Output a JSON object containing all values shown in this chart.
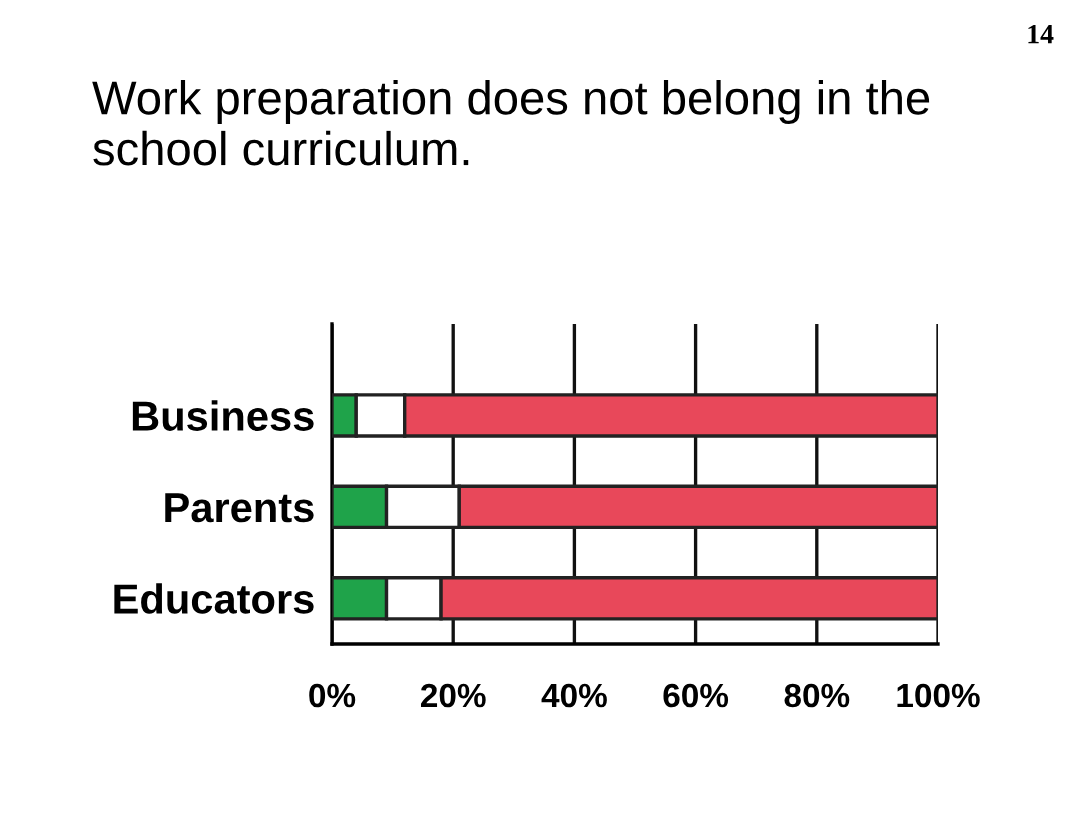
{
  "chart_data": {
    "type": "bar",
    "orientation": "horizontal",
    "stacked": true,
    "title": "Work preparation does not belong in the school curriculum.",
    "annotations": [
      "14"
    ],
    "categories": [
      "Business",
      "Parents",
      "Educators"
    ],
    "series": [
      {
        "color": "#1fa34a",
        "values": [
          4,
          9,
          9
        ]
      },
      {
        "color": "#ffffff",
        "values": [
          8,
          12,
          9
        ]
      },
      {
        "color": "#e8485a",
        "values": [
          88,
          79,
          82
        ]
      }
    ],
    "xlim": [
      0,
      100
    ],
    "xticks": [
      {
        "value": 0,
        "label": "0%"
      },
      {
        "value": 20,
        "label": "20%"
      },
      {
        "value": 40,
        "label": "40%"
      },
      {
        "value": 60,
        "label": "60%"
      },
      {
        "value": 80,
        "label": "80%"
      },
      {
        "value": 100,
        "label": "100%"
      }
    ],
    "grid": "x",
    "legend": false
  }
}
